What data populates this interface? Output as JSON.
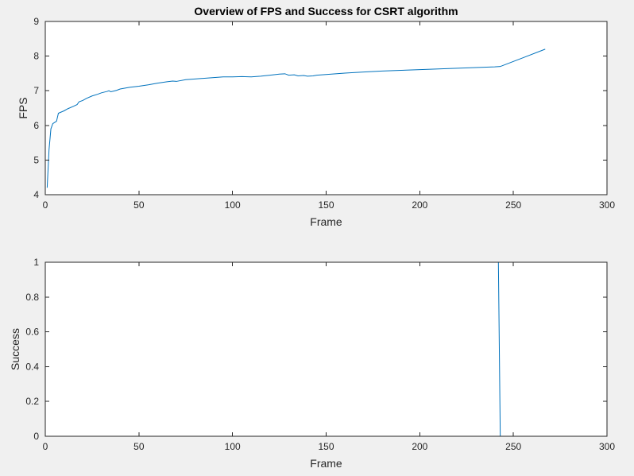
{
  "chart_data": [
    {
      "type": "line",
      "title": "Overview of FPS and Success for CSRT algorithm",
      "xlabel": "Frame",
      "ylabel": "FPS",
      "xlim": [
        0,
        300
      ],
      "ylim": [
        4,
        9
      ],
      "xticks": [
        0,
        50,
        100,
        150,
        200,
        250,
        300
      ],
      "yticks": [
        4,
        5,
        6,
        7,
        8,
        9
      ],
      "grid": false,
      "line_color": "#0072bd",
      "series": [
        {
          "x": [
            1,
            2,
            3,
            4,
            6,
            7,
            10,
            12,
            15,
            17,
            18,
            20,
            22,
            25,
            28,
            30,
            33,
            34,
            35,
            38,
            40,
            45,
            50,
            55,
            60,
            65,
            68,
            70,
            75,
            80,
            85,
            90,
            95,
            100,
            105,
            110,
            115,
            120,
            125,
            128,
            130,
            133,
            135,
            138,
            140,
            143,
            145,
            150,
            160,
            170,
            180,
            190,
            200,
            210,
            220,
            230,
            240,
            243,
            255,
            267
          ],
          "y": [
            4.2,
            5.3,
            5.9,
            6.05,
            6.12,
            6.35,
            6.42,
            6.48,
            6.55,
            6.6,
            6.68,
            6.72,
            6.78,
            6.85,
            6.9,
            6.94,
            6.98,
            7.0,
            6.97,
            7.01,
            7.05,
            7.1,
            7.13,
            7.17,
            7.22,
            7.26,
            7.28,
            7.27,
            7.32,
            7.34,
            7.36,
            7.38,
            7.4,
            7.4,
            7.41,
            7.4,
            7.42,
            7.45,
            7.48,
            7.49,
            7.45,
            7.46,
            7.43,
            7.44,
            7.42,
            7.43,
            7.45,
            7.47,
            7.51,
            7.54,
            7.57,
            7.59,
            7.61,
            7.63,
            7.65,
            7.67,
            7.69,
            7.7,
            7.95,
            8.2
          ]
        }
      ]
    },
    {
      "type": "line",
      "title": "",
      "xlabel": "Frame",
      "ylabel": "Success",
      "xlim": [
        0,
        300
      ],
      "ylim": [
        0,
        1
      ],
      "xticks": [
        0,
        50,
        100,
        150,
        200,
        250,
        300
      ],
      "yticks": [
        0,
        0.2,
        0.4,
        0.6,
        0.8,
        1
      ],
      "grid": false,
      "line_color": "#0072bd",
      "series": [
        {
          "x": [
            1,
            242,
            243,
            267
          ],
          "y": [
            1,
            1,
            0,
            0
          ]
        }
      ]
    }
  ]
}
